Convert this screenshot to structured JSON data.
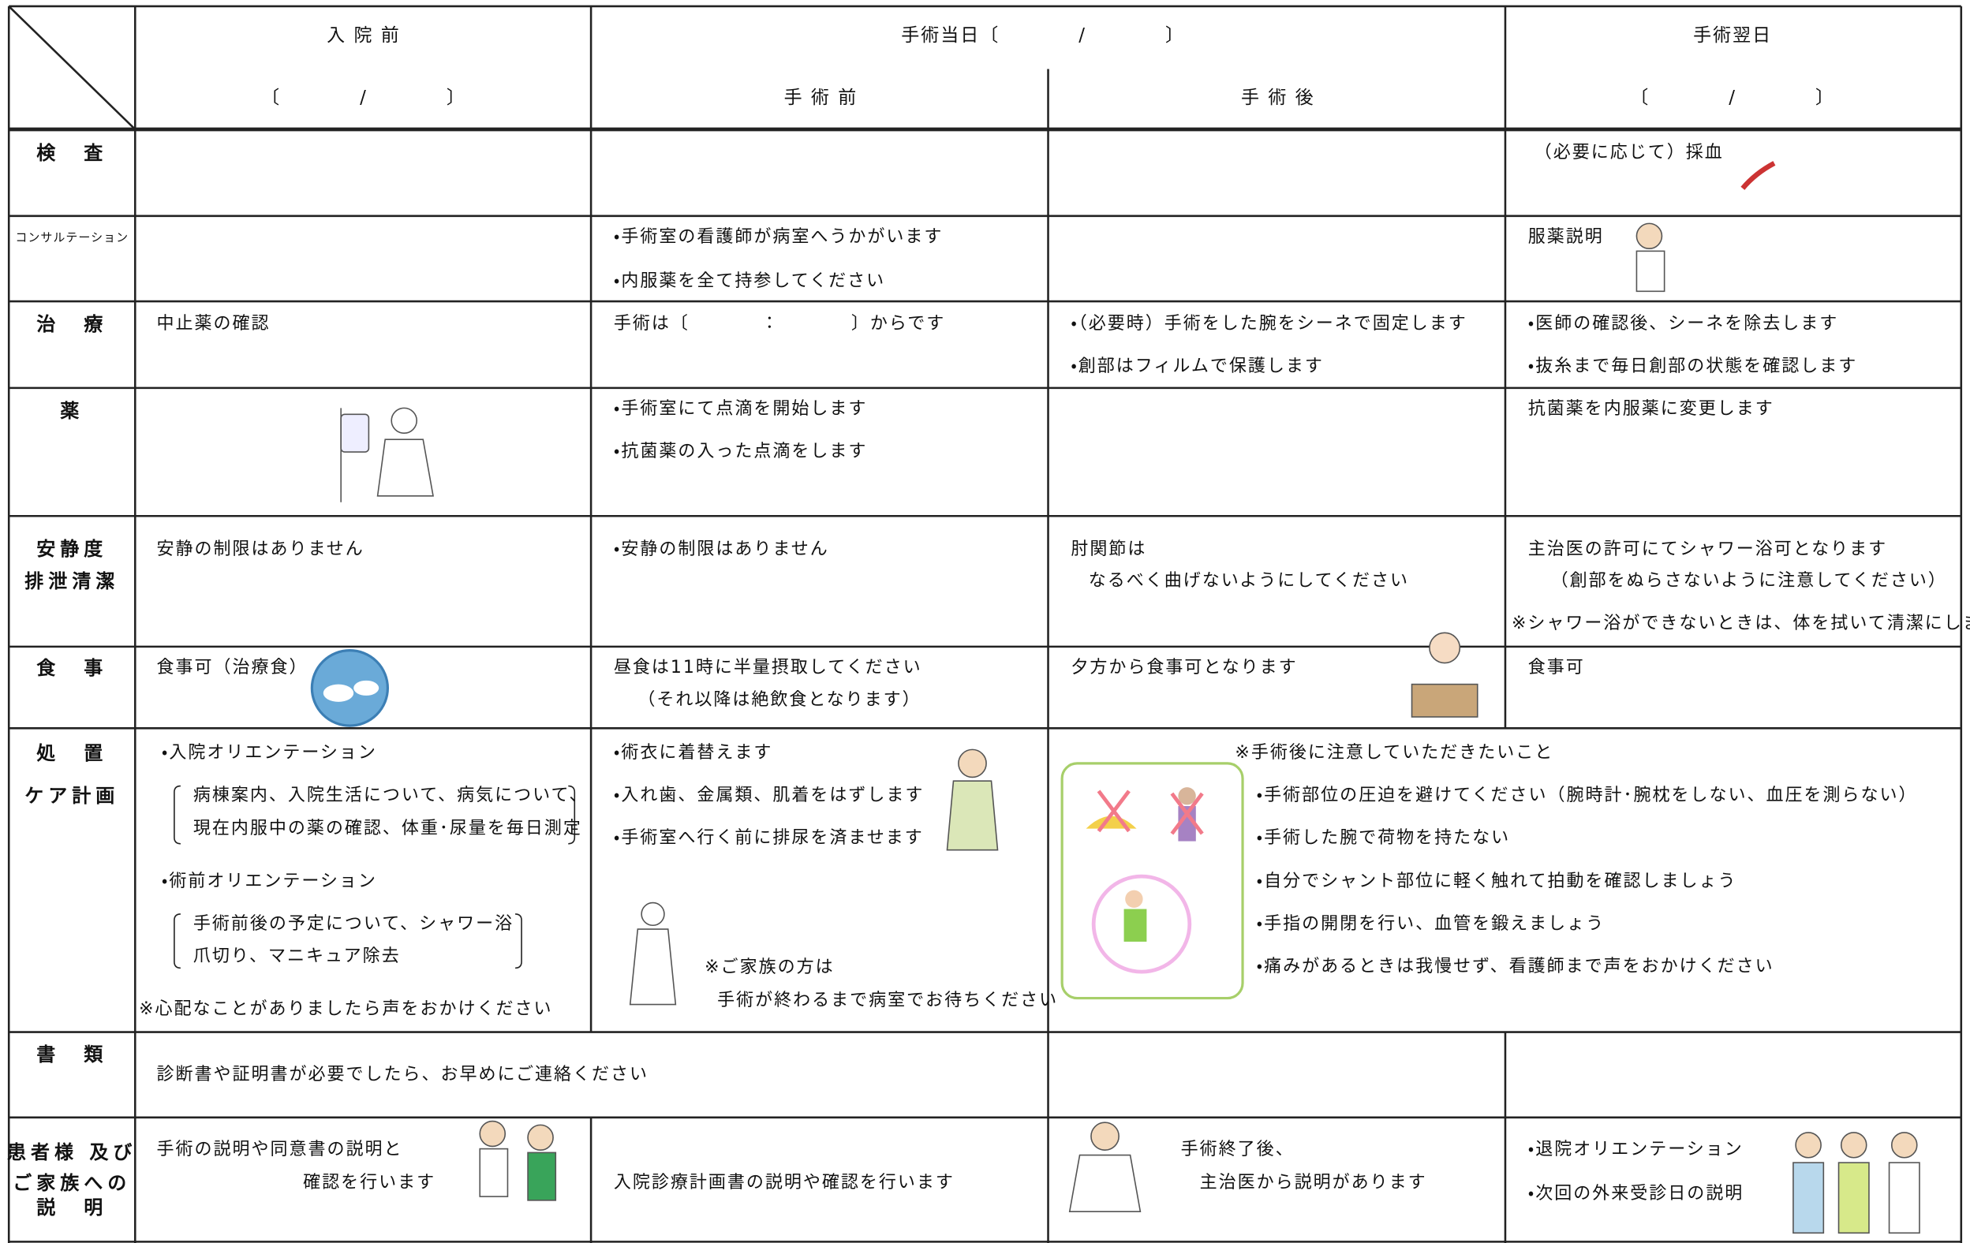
{
  "header": {
    "columns": [
      "入 院 前",
      "手術当日〔　　　　/　　　　〕",
      "手術翌日"
    ],
    "subheaders": [
      "〔　　　　/　　　　〕",
      "手 術 前",
      "手 術 後",
      "〔　　　　/　　　　〕"
    ]
  },
  "rows": [
    {
      "label": [
        "検　査"
      ],
      "cells": [
        [],
        [],
        [],
        [
          "（必要に応じて）採血"
        ]
      ]
    },
    {
      "label": [
        "コンサルテーション"
      ],
      "cells": [
        [],
        [
          "・手術室の看護師が病室へうかがいます",
          "・内服薬を全て持参してください"
        ],
        [],
        [
          "服薬説明"
        ]
      ]
    },
    {
      "label": [
        "治　療"
      ],
      "cells": [
        [
          "中止薬の確認"
        ],
        [
          "手術は〔　　　　：　　　　〕からです"
        ],
        [
          "・（必要時）手術をした腕をシーネで固定します",
          "・創部はフィルムで保護します"
        ],
        [
          "・医師の確認後、シーネを除去します",
          "・抜糸まで毎日創部の状態を確認します"
        ]
      ]
    },
    {
      "label": [
        "薬"
      ],
      "cells": [
        [],
        [
          "・手術室にて点滴を開始します",
          "・抗菌薬の入った点滴をします"
        ],
        [],
        [
          "抗菌薬を内服薬に変更します"
        ]
      ]
    },
    {
      "label": [
        "安静度",
        "排泄清潔"
      ],
      "cells": [
        [
          "安静の制限はありません"
        ],
        [
          "・安静の制限はありません"
        ],
        [
          "肘関節は",
          "なるべく曲げないようにしてください"
        ],
        [
          "主治医の許可にてシャワー浴可となります",
          "（創部をぬらさないように注意してください）",
          "※シャワー浴ができないときは、体を拭いて清潔にします"
        ]
      ]
    },
    {
      "label": [
        "食　事"
      ],
      "cells": [
        [
          "食事可（治療食）"
        ],
        [
          "昼食は11時に半量摂取してください",
          "（それ以降は絶飲食となります）"
        ],
        [
          "夕方から食事可となります"
        ],
        [
          "食事可"
        ]
      ]
    },
    {
      "label": [
        "処　置",
        "ケア計画"
      ],
      "cells": [
        [
          "・入院オリエンテーション",
          "病棟案内、入院生活について、病気について、",
          "現在内服中の薬の確認、体重･尿量を毎日測定",
          "・術前オリエンテーション",
          "手術前後の予定について、シャワー浴",
          "爪切り、マニキュア除去",
          "※心配なことがありましたら声をおかけください"
        ],
        [
          "・術衣に着替えます",
          "・入れ歯、金属類、肌着をはずします",
          "・手術室へ行く前に排尿を済ませます",
          "※ご家族の方は",
          "手術が終わるまで病室でお待ちください"
        ],
        [
          "※手術後に注意していただきたいこと",
          "・手術部位の圧迫を避けてください（腕時計･腕枕をしない、血圧を測らない）",
          "・手術した腕で荷物を持たない",
          "・自分でシャント部位に軽く触れて拍動を確認しましょう",
          "・手指の開閉を行い、血管を鍛えましょう",
          "・痛みがあるときは我慢せず、看護師まで声をおかけください"
        ],
        []
      ]
    },
    {
      "label": [
        "書　類"
      ],
      "cells": [
        [
          "診断書や証明書が必要でしたら、お早めにご連絡ください"
        ],
        [],
        [],
        []
      ]
    },
    {
      "label": [
        "患者様 及び",
        "ご家族への",
        "説　明"
      ],
      "cells": [
        [
          "手術の説明や同意書の説明と",
          "確認を行います"
        ],
        [
          "入院診療計画書の説明や確認を行います"
        ],
        [
          "手術終了後、",
          "主治医から説明があります"
        ],
        [
          "・退院オリエンテーション",
          "・次回の外来受診日の説明"
        ]
      ]
    }
  ]
}
